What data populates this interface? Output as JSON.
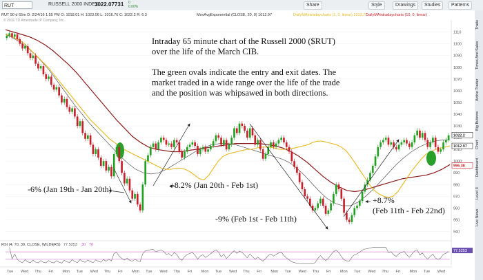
{
  "toolbar": {
    "symbol": "RUT",
    "name": "RUSSELL 2000 INDEX",
    "price": "1022.07731",
    "change_line1": "0",
    "change_line2": "0.00%",
    "buttons": [
      "Share",
      "Style",
      "Drawings",
      "Studies",
      "Patterns"
    ]
  },
  "legend_line": "RUT 90 d 65m   D: 2/24/16 1:55 PM   O: 1018.01   H: 1023.06   L: 1016.76   C: 1022.2   R: 6.3",
  "ma_legend": "MovAvgExponential (CLOSE, 20, 0)  1012.97",
  "intraday_legend_1": "DailyMAintradaycharts (1, 0, linear)  1013.77",
  "intraday_legend_2": "DailyMAintradaycharts (10, 0, linear)",
  "copyright": "© 2016 TD Ameritrade IP Company, Inc.",
  "side_tabs": [
    "Trade",
    "Times And Sales",
    "Active Trader",
    "Big Buttons",
    "Chart",
    "Dashboard",
    "Level II",
    "Live News"
  ],
  "annotations": {
    "main": [
      "Intraday 65 minute chart of the Russell 2000 ($RUT)",
      "over the life of the March CIB.",
      "",
      "The green ovals indicate the entry and exit dates.  The",
      "market traded in a wide range over the life of the trade",
      "and the position was whipsawed in both directions."
    ],
    "leg1": "-6% (Jan 19th - Jan 20th)",
    "leg2": "+8.2% (Jan 20th - Feb 1st)",
    "leg3": "-9% (Feb 1st - Feb 11th)",
    "leg4_line1": "+8.7%",
    "leg4_line2": "(Feb 11th - Feb 22nd)"
  },
  "colors": {
    "up": "#22a022",
    "down": "#c8202a",
    "ema20": "#e8b820",
    "ma_dark": "#8b1a1a",
    "ma_gray": "#555555",
    "oval": "#2aa02a",
    "rsi": "#6a6a6a",
    "rsi_ob": "#c050c0"
  },
  "chart_data": {
    "type": "candlestick",
    "ylim": [
      935,
      1118
    ],
    "yticks": [
      940,
      950,
      960,
      970,
      980,
      990,
      1000,
      1010,
      1020,
      1030,
      1040,
      1050,
      1060,
      1070,
      1080,
      1090,
      1100,
      1110
    ],
    "price_labels": [
      "1022.2",
      "1012.97",
      "996.38"
    ],
    "price_label_values": [
      1022.2,
      1012.97,
      996.38
    ],
    "xticks": [
      "Tue",
      "Wed",
      "Thu",
      "Fri",
      "Mon",
      "Tue",
      "Wed",
      "Thu",
      "Fri",
      "Mon",
      "Tue",
      "Wed",
      "Thu",
      "Fri",
      "Mon",
      "Tue",
      "Wed",
      "Thu",
      "Fri",
      "Mon",
      "Tue",
      "Wed",
      "Thu",
      "Fri",
      "Mon",
      "Tue",
      "Wed",
      "Thu",
      "Fri",
      "Mon",
      "Tue",
      "Wed"
    ],
    "close": [
      1107,
      1109,
      1106,
      1108,
      1104,
      1100,
      1096,
      1098,
      1092,
      1088,
      1090,
      1083,
      1079,
      1081,
      1074,
      1070,
      1072,
      1065,
      1061,
      1063,
      1056,
      1050,
      1053,
      1046,
      1042,
      1045,
      1038,
      1030,
      1034,
      1024,
      1019,
      1022,
      1014,
      1006,
      1010,
      1003,
      996,
      1000,
      992,
      995,
      987,
      1006,
      1012,
      1000,
      990,
      981,
      985,
      975,
      968,
      972,
      963,
      958,
      980,
      1000,
      1005,
      1012,
      1015,
      1010,
      1016,
      1020,
      1018,
      1014,
      1015,
      1012,
      1018,
      1016,
      1008,
      1003,
      1008,
      1012,
      1014,
      1016,
      1013,
      1006,
      1010,
      1012,
      1008,
      1010,
      1013,
      1017,
      1022,
      1020,
      1014,
      1018,
      1010,
      1014,
      1020,
      1028,
      1024,
      1032,
      1030,
      1026,
      1020,
      1028,
      1022,
      1014,
      1018,
      1010,
      1002,
      1006,
      1012,
      1016,
      1012,
      1015,
      1018,
      1020,
      1016,
      1012,
      1008,
      1000,
      995,
      990,
      982,
      976,
      970,
      968,
      962,
      958,
      960,
      964,
      968,
      962,
      955,
      958,
      964,
      972,
      980,
      976,
      968,
      956,
      950,
      948,
      954,
      960,
      962,
      966,
      974,
      980,
      984,
      990,
      996,
      1004,
      1012,
      1016,
      1018,
      1020,
      1014,
      1016,
      1012,
      1010,
      1014,
      1016,
      1018,
      1015,
      1012,
      1016,
      1022,
      1026,
      1020,
      1024,
      1018,
      1012,
      1016,
      1020,
      1012,
      1008,
      1010,
      1016,
      1018,
      1022
    ],
    "ema20": [
      1108,
      1107,
      1105,
      1103,
      1100,
      1096,
      1092,
      1088,
      1084,
      1080,
      1075,
      1070,
      1065,
      1060,
      1055,
      1050,
      1045,
      1040,
      1035,
      1031,
      1027,
      1023,
      1019,
      1016,
      1013,
      1010,
      1008,
      1006,
      1004,
      1002,
      1000,
      998,
      996,
      994,
      993,
      993,
      994,
      994,
      993,
      991,
      988,
      985,
      984,
      988,
      994,
      1000,
      1004,
      1006,
      1007,
      1008,
      1009,
      1010,
      1010,
      1011,
      1012,
      1012,
      1012,
      1011,
      1010,
      1010,
      1011,
      1011,
      1012,
      1013,
      1014,
      1016,
      1017,
      1017,
      1016,
      1015,
      1014,
      1012,
      1009,
      1004,
      998,
      992,
      986,
      980,
      975,
      972,
      970,
      969,
      970,
      974,
      980,
      986,
      992,
      997,
      1002,
      1006,
      1008,
      1010,
      1011,
      1012,
      1013
    ],
    "ma_dark": [
      1112,
      1110,
      1108,
      1106,
      1103,
      1099,
      1094,
      1088,
      1082,
      1075,
      1067,
      1059,
      1051,
      1043,
      1035,
      1028,
      1021,
      1016,
      1012,
      1010,
      1009,
      1008,
      1008,
      1009,
      1010,
      1011,
      1012,
      1013,
      1014,
      1015,
      1015,
      1015,
      1015,
      1014,
      1013,
      1011,
      1008,
      1004,
      999,
      993,
      987,
      982,
      978,
      975,
      974,
      975,
      977,
      979,
      981,
      983,
      985,
      986,
      987,
      988,
      990,
      993,
      997
    ],
    "ma_gray": [
      1108,
      1105,
      1101,
      1096,
      1090,
      1083,
      1075,
      1066,
      1057,
      1048,
      1040,
      1032,
      1025,
      1018,
      1011,
      1004,
      998,
      993,
      990,
      989,
      990,
      993,
      997,
      1001,
      1005,
      1009,
      1012,
      1014,
      1015,
      1015,
      1014,
      1012,
      1010,
      1008,
      1006,
      1004,
      1002,
      999,
      994,
      988,
      981,
      974,
      968,
      964,
      962,
      962,
      965,
      970,
      976,
      983,
      990,
      997,
      1003,
      1008,
      1012,
      1015,
      1017,
      1018,
      1018
    ],
    "rsi_label": "RSI (4, 70, 30, CLOSE, WILDERS)",
    "rsi_value": "77.5253",
    "rsi_levels": [
      70,
      30
    ],
    "rsi_level_labels": [
      "30",
      "70"
    ]
  }
}
